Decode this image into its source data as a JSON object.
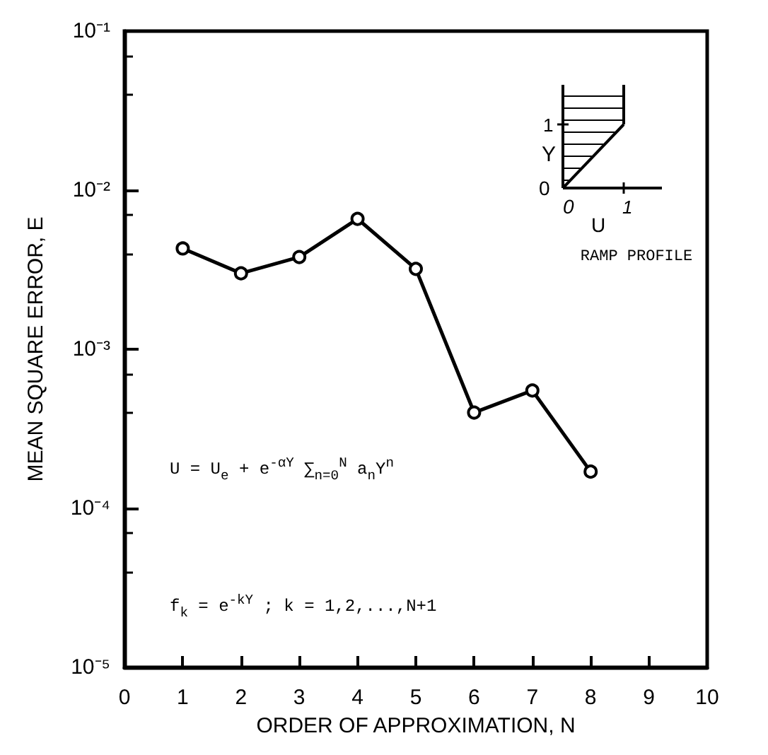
{
  "chart_data": {
    "type": "line",
    "xlabel": "ORDER OF APPROXIMATION, N",
    "ylabel": "MEAN SQUARE ERROR, E",
    "x": [
      1,
      2,
      3,
      4,
      5,
      6,
      7,
      8
    ],
    "series": [
      {
        "color": "#000000",
        "values": [
          0.0043,
          0.003,
          0.0038,
          0.0066,
          0.0032,
          0.0004,
          0.00055,
          0.00017
        ]
      }
    ],
    "xlim": [
      0,
      10
    ],
    "xticks": [
      0,
      1,
      2,
      3,
      4,
      5,
      6,
      7,
      8,
      9,
      10
    ],
    "ylim": [
      1e-05,
      0.1
    ],
    "yticks": [
      {
        "value": 1e-05,
        "label": "10⁻⁵"
      },
      {
        "value": 0.0001,
        "label": "10⁻⁴"
      },
      {
        "value": 0.001,
        "label": "10⁻³"
      },
      {
        "value": 0.01,
        "label": "10⁻²"
      },
      {
        "value": 0.1,
        "label": "10⁻¹"
      }
    ],
    "log": "y",
    "grid": false,
    "marker": "circle",
    "line_style": "solid",
    "annotations": [
      "U = U$_{e}$ + e$^{-αY}$ ∑$_{n=0}$$^{N}$ a$_{n}$Y$^{n}$",
      "f$_{k}$ = e$^{-kY}$ ;  k = 1,2,...,N+1",
      "RAMP PROFILE",
      "Y",
      "1",
      "0",
      "0",
      "U",
      "1"
    ]
  }
}
